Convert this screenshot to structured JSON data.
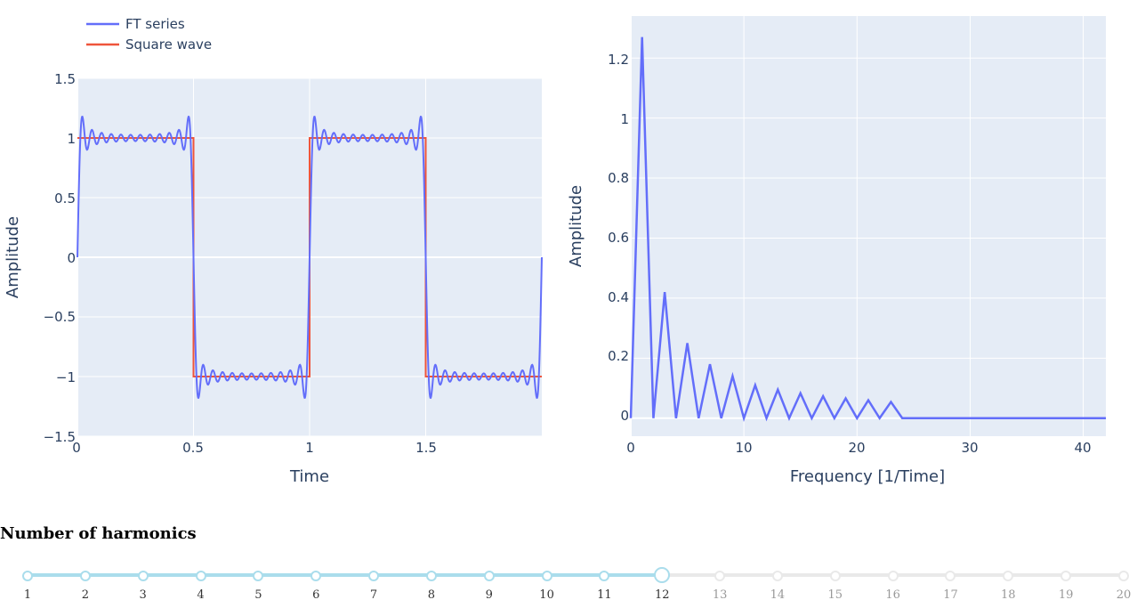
{
  "legend": {
    "items": [
      {
        "name": "FT series",
        "color": "#636efa"
      },
      {
        "name": "Square wave",
        "color": "#ef553b"
      }
    ]
  },
  "chart_data": [
    {
      "type": "line",
      "title": "",
      "xlabel": "Time",
      "ylabel": "Amplitude",
      "xlim": [
        0,
        2
      ],
      "ylim": [
        -1.5,
        1.5
      ],
      "x_ticks": [
        "0",
        "0.5",
        "1",
        "1.5"
      ],
      "y_ticks": [
        "1.5",
        "1",
        "0.5",
        "0",
        "−0.5",
        "−1",
        "−1.5"
      ],
      "grid": true,
      "legend_position": "top-left",
      "series": [
        {
          "name": "FT series",
          "color": "#636efa",
          "generator": "fourier square wave partial sum",
          "harmonics": 12,
          "period": 1,
          "x_range": [
            0,
            2
          ]
        },
        {
          "name": "Square wave",
          "color": "#ef553b",
          "x": [
            0,
            0.5,
            0.5,
            1,
            1,
            1.5,
            1.5,
            2
          ],
          "y": [
            1,
            1,
            -1,
            -1,
            1,
            1,
            -1,
            -1
          ]
        }
      ]
    },
    {
      "type": "line",
      "title": "",
      "xlabel": "Frequency [1/Time]",
      "ylabel": "Amplitude",
      "xlim": [
        0,
        42
      ],
      "ylim": [
        -0.06,
        1.34
      ],
      "x_ticks": [
        "0",
        "10",
        "20",
        "30",
        "40"
      ],
      "y_ticks": [
        "1.2",
        "1",
        "0.8",
        "0.6",
        "0.4",
        "0.2",
        "0"
      ],
      "grid": true,
      "series": [
        {
          "name": "",
          "color": "#636efa",
          "x": [
            0,
            1,
            2,
            3,
            4,
            5,
            6,
            7,
            8,
            9,
            10,
            11,
            12,
            13,
            14,
            15,
            16,
            17,
            18,
            19,
            20,
            21,
            22,
            23,
            24,
            42
          ],
          "y": [
            0,
            1.27,
            0,
            0.42,
            0,
            0.25,
            0,
            0.18,
            0,
            0.14,
            0,
            0.11,
            0,
            0.095,
            0,
            0.083,
            0,
            0.073,
            0,
            0.066,
            0,
            0.06,
            0,
            0.054,
            0,
            0
          ]
        }
      ]
    }
  ],
  "slider": {
    "title": "Number of harmonics",
    "min": 1,
    "max": 20,
    "value": 12,
    "accent_color": "#aaddec",
    "rail_color": "#e9e9e9",
    "marks": [
      "1",
      "2",
      "3",
      "4",
      "5",
      "6",
      "7",
      "8",
      "9",
      "10",
      "11",
      "12",
      "13",
      "14",
      "15",
      "16",
      "17",
      "18",
      "19",
      "20"
    ]
  }
}
